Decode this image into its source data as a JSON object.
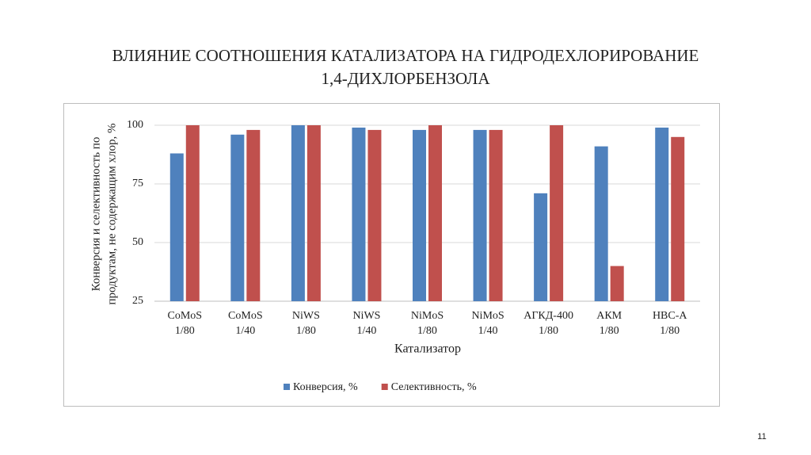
{
  "chart_data": {
    "type": "bar",
    "title": [
      "ВЛИЯНИЕ СООТНОШЕНИЯ КАТАЛИЗАТОРА НА ГИДРОДЕХЛОРИРОВАНИЕ",
      "1,4-ДИХЛОРБЕНЗОЛА"
    ],
    "x_label": "Катализатор",
    "y_label": [
      "Конверсия и селективность по",
      "продуктам, не содержащим хлор, %"
    ],
    "categories": [
      [
        "CoMoS",
        "1/80"
      ],
      [
        "CoMoS",
        "1/40"
      ],
      [
        "NiWS",
        "1/80"
      ],
      [
        "NiWS",
        "1/40"
      ],
      [
        "NiMoS",
        "1/80"
      ],
      [
        "NiMoS",
        "1/40"
      ],
      [
        "АГКД-400",
        "1/80"
      ],
      [
        "АКМ",
        "1/80"
      ],
      [
        "НВС-А",
        "1/80"
      ]
    ],
    "series": [
      {
        "name": "Конверсия, %",
        "color": "#4f81bd",
        "values": [
          88,
          96,
          100,
          99,
          98,
          98,
          71,
          91,
          99
        ]
      },
      {
        "name": "Селективность, %",
        "color": "#c0504d",
        "values": [
          100,
          98,
          100,
          98,
          100,
          98,
          100,
          40,
          95
        ]
      }
    ],
    "ylim": [
      25,
      100
    ],
    "yticks": [
      25,
      50,
      75,
      100
    ],
    "grid": true,
    "legend": "bottom"
  },
  "slide_number": "11"
}
